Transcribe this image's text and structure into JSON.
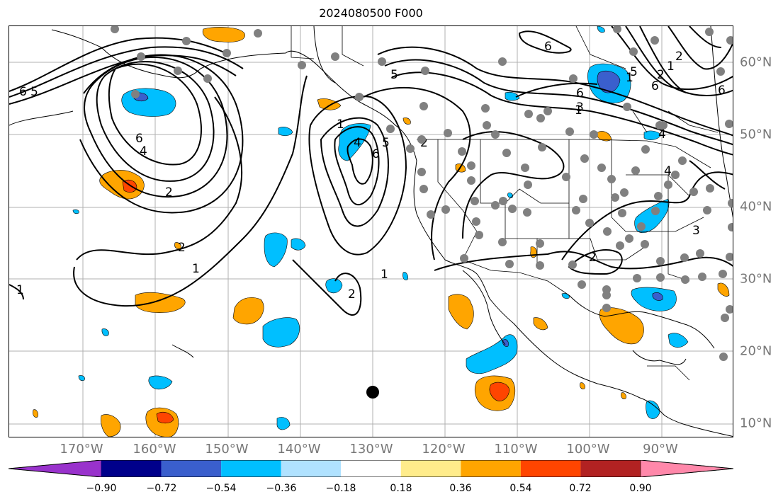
{
  "title": "2024080500 F000",
  "lon_labels": [
    "170°W",
    "160°W",
    "150°W",
    "140°W",
    "130°W",
    "120°W",
    "110°W",
    "100°W",
    "90°W"
  ],
  "lat_labels": [
    "60°N",
    "50°N",
    "40°N",
    "30°N",
    "20°N",
    "10°N"
  ],
  "colorbar": {
    "ticks": [
      "−0.90",
      "−0.72",
      "−0.54",
      "−0.36",
      "−0.18",
      "0.18",
      "0.36",
      "0.54",
      "0.72",
      "0.90"
    ],
    "colors": [
      "#9932cc",
      "#00008b",
      "#3a5fcd",
      "#00bfff",
      "#b0e2ff",
      "#ffffff",
      "#ffec8b",
      "#ffa500",
      "#ff4500",
      "#b22222",
      "#ff88aa"
    ]
  },
  "contour_labels": [
    "6",
    "5",
    "6",
    "4",
    "2",
    "1",
    "2",
    "1",
    "1",
    "4",
    "5",
    "6",
    "1",
    "2",
    "6",
    "5",
    "2",
    "3",
    "1",
    "4",
    "6",
    "2",
    "1",
    "2",
    "6",
    "1",
    "5",
    "6",
    "4",
    "2",
    "3"
  ],
  "colors": {
    "positive_fill": "#ffa500",
    "positive_strong": "#ff4500",
    "negative_fill": "#00bfff",
    "negative_strong": "#3a5fcd",
    "station_dot": "#808080",
    "marker": "#000000",
    "grid": "#b0b0b0"
  }
}
